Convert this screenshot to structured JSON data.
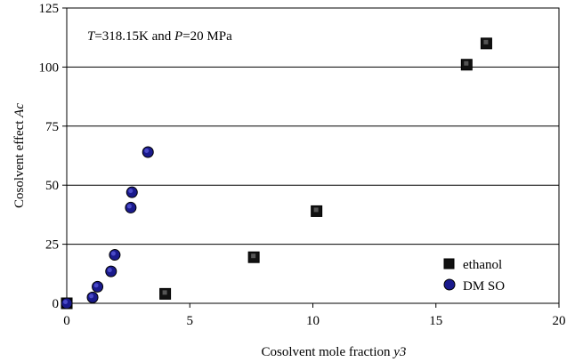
{
  "chart_data": {
    "type": "scatter",
    "annotation": {
      "t_symbol": "T",
      "t_value": "=318.15K and ",
      "p_symbol": "P",
      "p_value": "=20 MPa"
    },
    "xlabel": "Cosolvent mole fraction ",
    "xlabel_symbol": "y3",
    "ylabel": "Cosolvent effect ",
    "ylabel_symbol": "Ac",
    "xlim": [
      0,
      20
    ],
    "ylim": [
      0,
      125
    ],
    "xticks": [
      0,
      5,
      10,
      15,
      20
    ],
    "yticks": [
      0,
      25,
      50,
      75,
      100,
      125
    ],
    "legend_position": "bottom-right",
    "series": [
      {
        "name": "ethanol",
        "marker": "square",
        "color": "#111111",
        "points": [
          {
            "x": 0,
            "y": 0
          },
          {
            "x": 4.0,
            "y": 4
          },
          {
            "x": 7.6,
            "y": 19.5
          },
          {
            "x": 10.15,
            "y": 39
          },
          {
            "x": 16.25,
            "y": 101
          },
          {
            "x": 17.05,
            "y": 110
          }
        ]
      },
      {
        "name": "DM SO",
        "marker": "circle",
        "color": "#1a1a8c",
        "points": [
          {
            "x": 0,
            "y": 0
          },
          {
            "x": 1.05,
            "y": 2.5
          },
          {
            "x": 1.25,
            "y": 7
          },
          {
            "x": 1.8,
            "y": 13.5
          },
          {
            "x": 1.95,
            "y": 20.5
          },
          {
            "x": 2.6,
            "y": 40.5
          },
          {
            "x": 2.65,
            "y": 47
          },
          {
            "x": 3.3,
            "y": 64
          }
        ]
      }
    ]
  }
}
